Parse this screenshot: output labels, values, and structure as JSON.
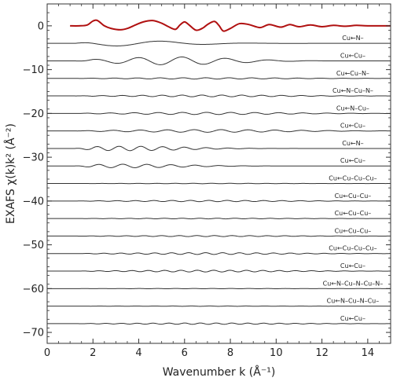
{
  "chart_data": {
    "type": "line",
    "title": "",
    "xlabel": "Wavenumber k (Å⁻¹)",
    "ylabel": "EXAFS χ(k)k² (Å⁻²)",
    "xlim": [
      0,
      15
    ],
    "ylim": [
      -72.5,
      5
    ],
    "x_ticks": [
      0,
      2,
      4,
      6,
      8,
      10,
      12,
      14
    ],
    "y_ticks": [
      0,
      -10,
      -20,
      -30,
      -40,
      -50,
      -60,
      -70
    ],
    "grid": false,
    "colors": {
      "total": "#b01010",
      "paths": "#333333",
      "frame": "#333333"
    },
    "total": {
      "offset": 0,
      "points": [
        [
          1.0,
          0
        ],
        [
          1.4,
          0
        ],
        [
          1.75,
          0.2
        ],
        [
          2.0,
          1.1
        ],
        [
          2.2,
          1.2
        ],
        [
          2.5,
          0.0
        ],
        [
          2.8,
          -0.6
        ],
        [
          3.2,
          -0.9
        ],
        [
          3.5,
          -0.6
        ],
        [
          3.9,
          0.3
        ],
        [
          4.2,
          0.9
        ],
        [
          4.6,
          1.2
        ],
        [
          5.0,
          0.6
        ],
        [
          5.3,
          -0.2
        ],
        [
          5.6,
          -0.8
        ],
        [
          5.8,
          0.2
        ],
        [
          6.0,
          0.9
        ],
        [
          6.2,
          0.2
        ],
        [
          6.5,
          -1.0
        ],
        [
          6.8,
          -0.5
        ],
        [
          7.0,
          0.3
        ],
        [
          7.3,
          1.0
        ],
        [
          7.5,
          0.1
        ],
        [
          7.7,
          -1.2
        ],
        [
          8.0,
          -0.6
        ],
        [
          8.4,
          0.5
        ],
        [
          8.8,
          0.3
        ],
        [
          9.3,
          -0.4
        ],
        [
          9.7,
          0.3
        ],
        [
          10.2,
          -0.3
        ],
        [
          10.6,
          0.3
        ],
        [
          11.0,
          -0.2
        ],
        [
          11.5,
          0.2
        ],
        [
          12.0,
          -0.2
        ],
        [
          12.5,
          0.1
        ],
        [
          13.0,
          -0.1
        ],
        [
          13.5,
          0.1
        ],
        [
          14.0,
          0
        ],
        [
          15.0,
          0
        ]
      ]
    },
    "series": [
      {
        "label": "Cu←N–",
        "offset": -4,
        "amp": 0.6,
        "freq": 0.5,
        "env": "low"
      },
      {
        "label": "Cu←Cu–",
        "offset": -8,
        "amp": 0.9,
        "freq": 1.05,
        "env": "mid"
      },
      {
        "label": "Cu←Cu–N–",
        "offset": -12,
        "amp": 0.15,
        "freq": 2.0,
        "env": "flat"
      },
      {
        "label": "Cu←N–Cu–N–",
        "offset": -16,
        "amp": 0.2,
        "freq": 2.3,
        "env": "flat"
      },
      {
        "label": "Cu←N–Cu–",
        "offset": -20,
        "amp": 0.25,
        "freq": 1.9,
        "env": "flat"
      },
      {
        "label": "Cu←Cu–",
        "offset": -24,
        "amp": 0.3,
        "freq": 1.7,
        "env": "flat"
      },
      {
        "label": "Cu←N–",
        "offset": -28,
        "amp": 0.5,
        "freq": 2.1,
        "env": "low"
      },
      {
        "label": "Cu←Cu–",
        "offset": -32,
        "amp": 0.4,
        "freq": 1.9,
        "env": "low"
      },
      {
        "label": "Cu←Cu–Cu–Cu–",
        "offset": -36,
        "amp": 0.05,
        "freq": 2.5,
        "env": "flat"
      },
      {
        "label": "Cu←Cu–Cu–",
        "offset": -40,
        "amp": 0.15,
        "freq": 2.5,
        "env": "flat"
      },
      {
        "label": "Cu←Cu–Cu–",
        "offset": -44,
        "amp": 0.08,
        "freq": 2.6,
        "env": "flat"
      },
      {
        "label": "Cu←Cu–Cu–",
        "offset": -48,
        "amp": 0.12,
        "freq": 2.6,
        "env": "flat"
      },
      {
        "label": "Cu←Cu–Cu–Cu–",
        "offset": -52,
        "amp": 0.2,
        "freq": 2.7,
        "env": "flat"
      },
      {
        "label": "Cu←Cu–",
        "offset": -56,
        "amp": 0.2,
        "freq": 2.8,
        "env": "flat"
      },
      {
        "label": "Cu←N–Cu–N–Cu–N–",
        "offset": -60,
        "amp": 0.04,
        "freq": 2.5,
        "env": "flat"
      },
      {
        "label": "Cu←N–Cu–N–Cu–",
        "offset": -64,
        "amp": 0.04,
        "freq": 2.5,
        "env": "flat"
      },
      {
        "label": "Cu←Cu–",
        "offset": -68,
        "amp": 0.15,
        "freq": 2.9,
        "env": "flat"
      }
    ]
  }
}
